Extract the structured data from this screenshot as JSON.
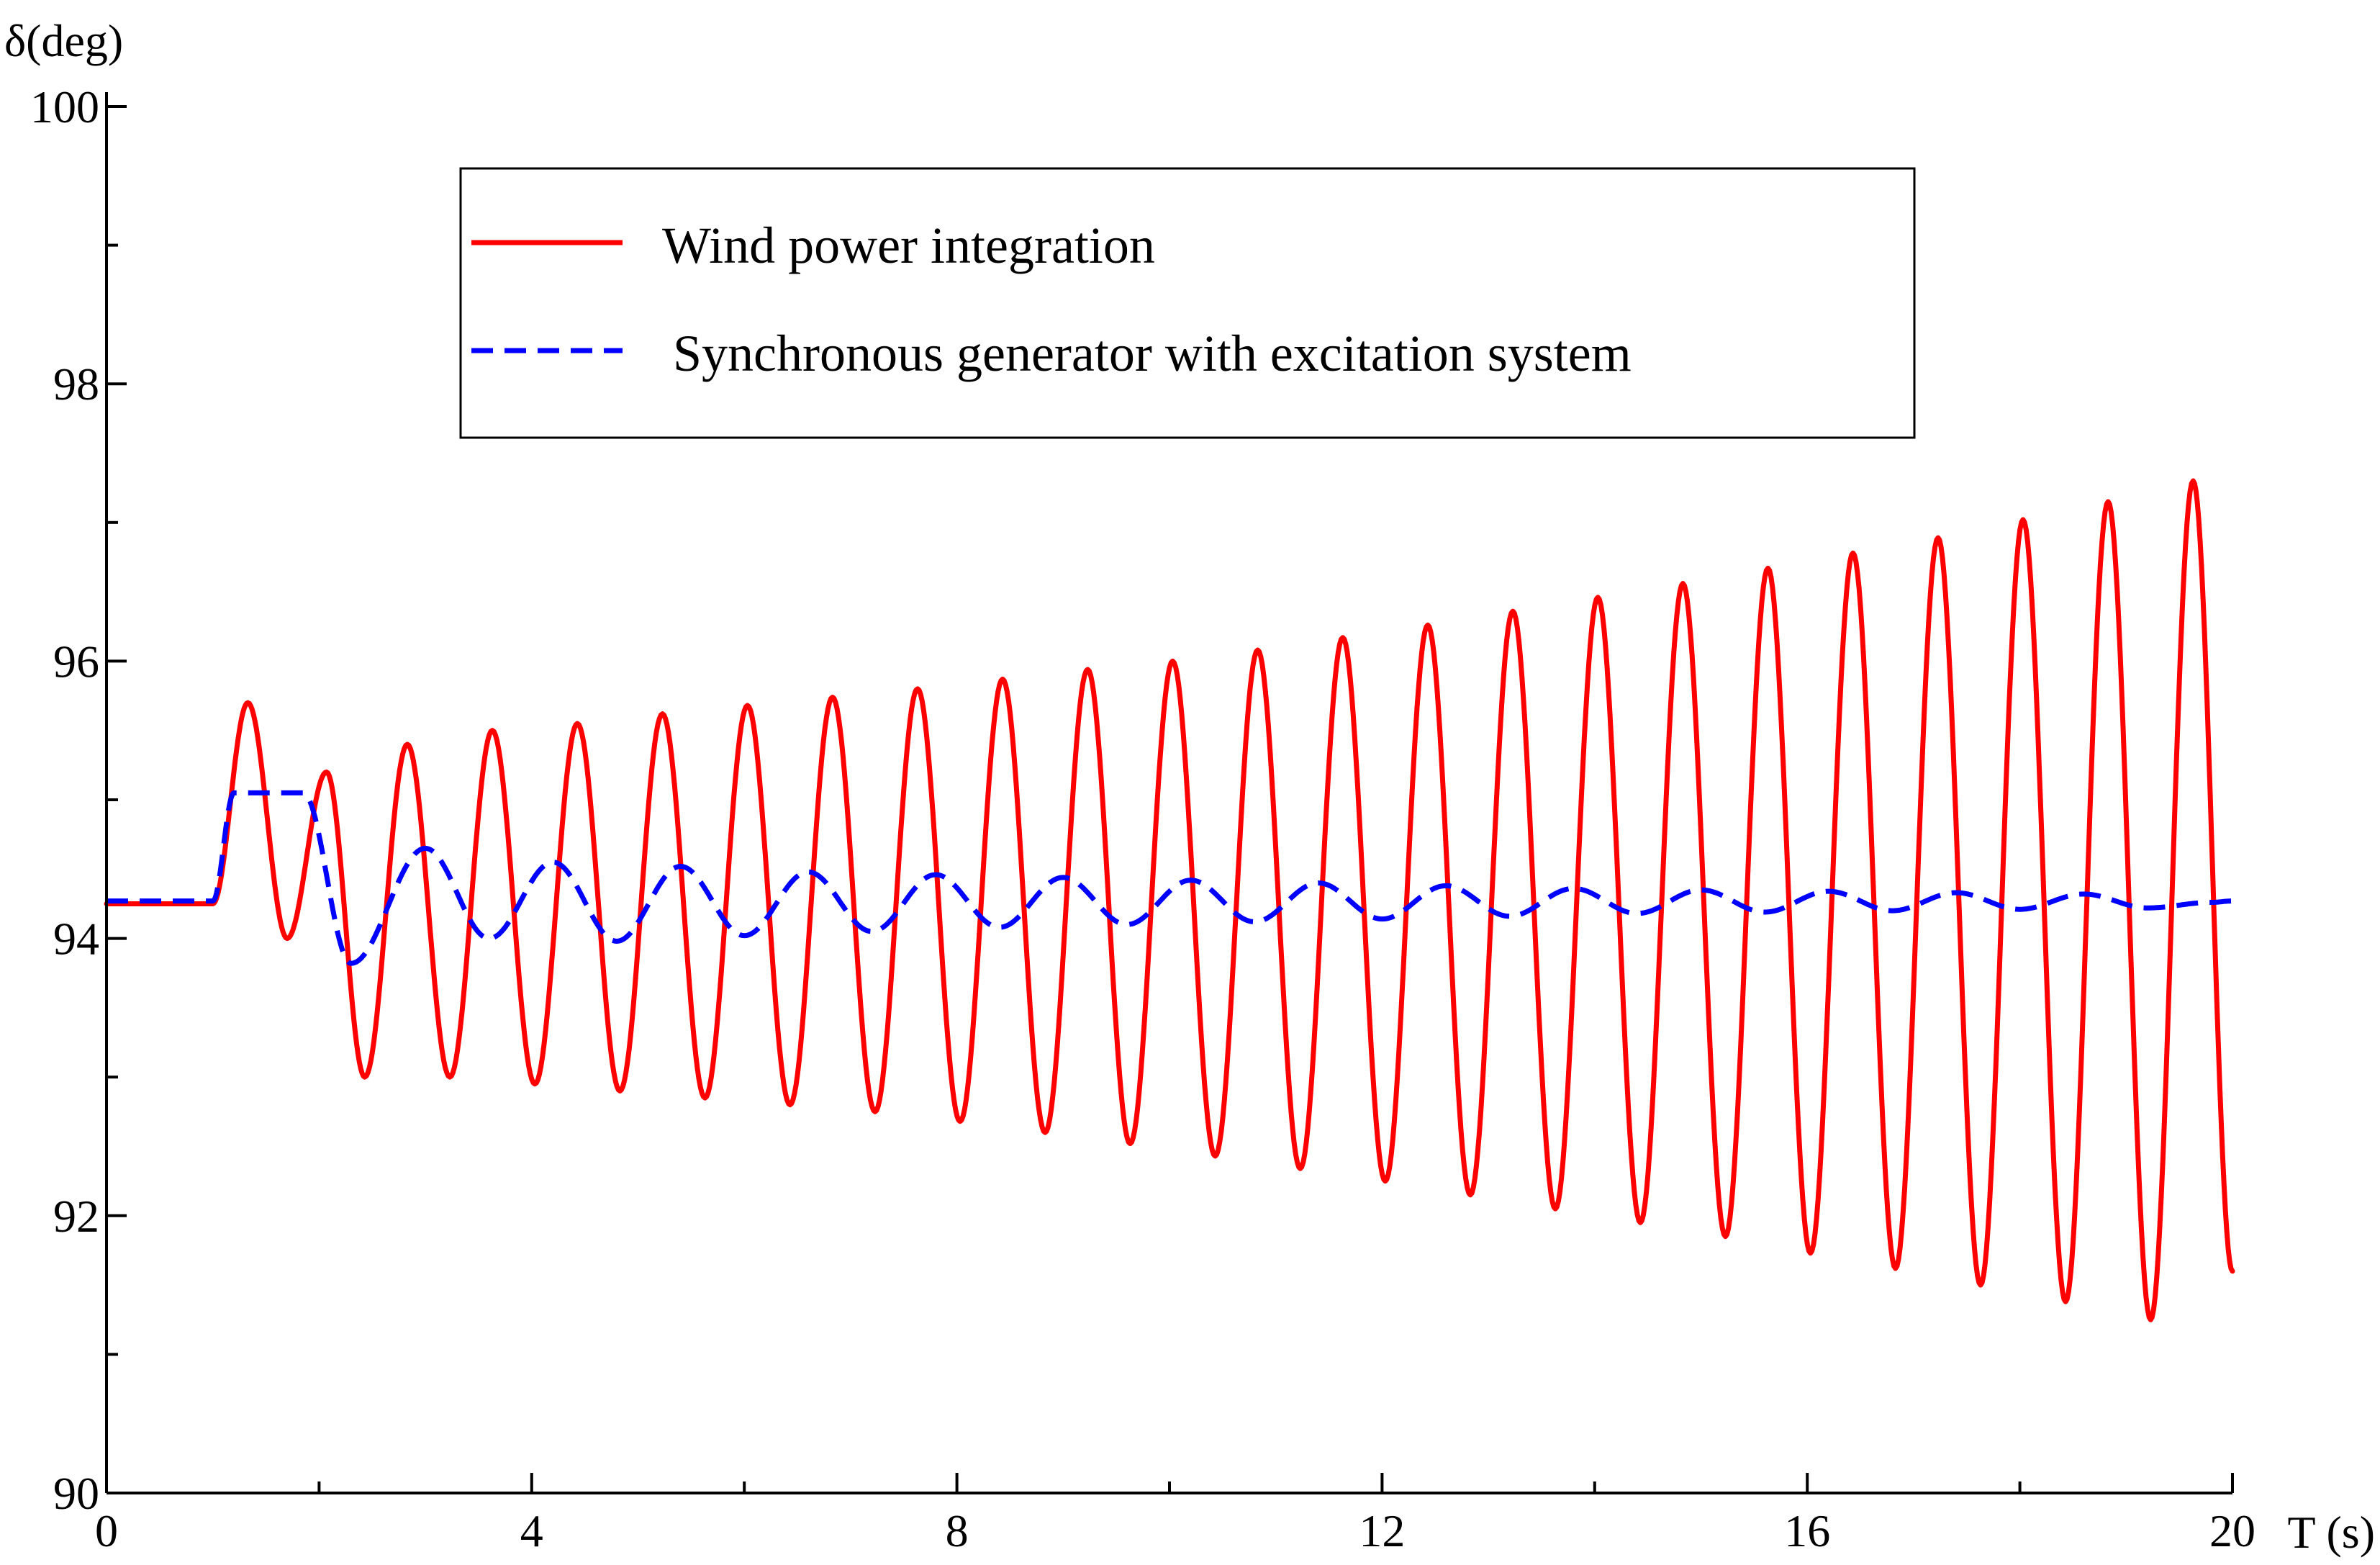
{
  "chart_data": {
    "type": "line",
    "xlabel": "T (s)",
    "ylabel": "δ(deg)",
    "xlim": [
      0,
      20
    ],
    "ylim": [
      90,
      100
    ],
    "xticks": [
      0,
      4,
      8,
      12,
      16,
      20
    ],
    "yticks": [
      90,
      92,
      94,
      96,
      98,
      100
    ],
    "legend_position": "top-center",
    "grid": false,
    "series": [
      {
        "name": "Wind power integration",
        "color": "#ff0000",
        "style": "solid",
        "x": [
          0,
          1,
          1.33,
          1.7,
          2.07,
          2.43,
          2.83,
          3.23,
          3.63,
          4.03,
          4.43,
          4.83,
          5.23,
          5.63,
          6.03,
          6.43,
          6.83,
          7.23,
          7.63,
          8.03,
          8.43,
          8.83,
          9.23,
          9.63,
          10.03,
          10.43,
          10.83,
          11.23,
          11.63,
          12.03,
          12.43,
          12.83,
          13.23,
          13.63,
          14.03,
          14.43,
          14.83,
          15.23,
          15.63,
          16.03,
          16.43,
          16.83,
          17.23,
          17.63,
          18.03,
          18.43,
          18.83,
          19.23,
          19.63,
          20
        ],
        "y": [
          94.25,
          94.25,
          95.7,
          94.0,
          95.2,
          93.0,
          95.4,
          93.0,
          95.5,
          92.95,
          95.55,
          92.9,
          95.62,
          92.85,
          95.68,
          92.8,
          95.74,
          92.75,
          95.8,
          92.68,
          95.87,
          92.6,
          95.94,
          92.52,
          96.0,
          92.43,
          96.08,
          92.34,
          96.17,
          92.25,
          96.26,
          92.15,
          96.36,
          92.05,
          96.46,
          91.95,
          96.56,
          91.85,
          96.67,
          91.73,
          96.78,
          91.62,
          96.89,
          91.5,
          97.02,
          91.38,
          97.15,
          91.25,
          97.3,
          91.6
        ]
      },
      {
        "name": "Synchronous generator with excitation system",
        "color": "#0000ff",
        "style": "dashed",
        "x": [
          0,
          1,
          1.2,
          1.85,
          2.3,
          3.0,
          3.6,
          4.2,
          4.8,
          5.4,
          6.0,
          6.6,
          7.2,
          7.8,
          8.4,
          9.0,
          9.6,
          10.2,
          10.8,
          11.4,
          12.0,
          12.6,
          13.2,
          13.8,
          14.4,
          15.0,
          15.6,
          16.2,
          16.8,
          17.4,
          18.0,
          18.6,
          19.2,
          19.8,
          20
        ],
        "y": [
          94.27,
          94.27,
          95.05,
          95.05,
          93.82,
          94.65,
          94.0,
          94.55,
          93.98,
          94.52,
          94.02,
          94.48,
          94.05,
          94.46,
          94.08,
          94.44,
          94.1,
          94.42,
          94.12,
          94.4,
          94.14,
          94.38,
          94.16,
          94.36,
          94.18,
          94.35,
          94.19,
          94.34,
          94.2,
          94.33,
          94.21,
          94.32,
          94.22,
          94.26,
          94.27
        ]
      }
    ]
  }
}
